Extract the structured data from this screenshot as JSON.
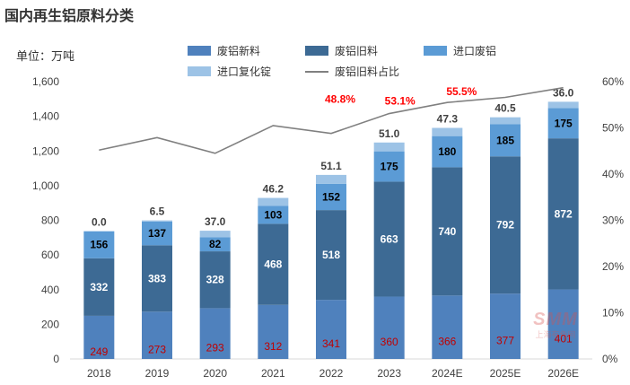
{
  "page": {
    "title": "国内再生铝原料分类",
    "unit": "单位：万吨"
  },
  "watermark": {
    "logo": "SMM",
    "text": "上海有色网"
  },
  "colors": {
    "new_scrap": "#4f81bd",
    "old_scrap": "#3d6a94",
    "import_scrap": "#5b9bd5",
    "import_remelt": "#9dc3e6",
    "ratio_line": "#808080",
    "new_label": "#c00000",
    "ratio_label": "#ff0000",
    "label_white": "#ffffff",
    "label_dark": "#000000",
    "axis_text": "#404040",
    "grid": "#d9d9d9"
  },
  "chart_data": {
    "type": "bar",
    "stacked": true,
    "title": "国内再生铝原料分类",
    "ylabel": "单位：万吨",
    "categories": [
      "2018",
      "2019",
      "2020",
      "2021",
      "2022",
      "2023",
      "2024E",
      "2025E",
      "2026E"
    ],
    "series": [
      {
        "name": "废铝新料",
        "key": "new_scrap",
        "values": [
          249,
          273,
          293,
          312,
          341,
          360,
          366,
          377,
          401
        ]
      },
      {
        "name": "废铝旧料",
        "key": "old_scrap",
        "values": [
          332,
          383,
          328,
          468,
          518,
          663,
          740,
          792,
          872
        ]
      },
      {
        "name": "进口废铝",
        "key": "import_scrap",
        "values": [
          156,
          137,
          82,
          103,
          152,
          175,
          180,
          185,
          175
        ]
      },
      {
        "name": "进口复化锭",
        "key": "import_remelt",
        "values": [
          0.0,
          6.5,
          37.0,
          46.2,
          51.1,
          51.0,
          47.3,
          40.5,
          36.0
        ]
      }
    ],
    "line": {
      "name": "废铝旧料占比",
      "axis": "right",
      "values": [
        45.2,
        47.9,
        44.5,
        50.5,
        48.8,
        53.1,
        55.5,
        56.6,
        58.7
      ],
      "labels": [
        "",
        "",
        "",
        "",
        "48.8%",
        "53.1%",
        "55.5%",
        "",
        ""
      ]
    },
    "ylim": [
      0,
      1600
    ],
    "yticks": [
      "0",
      "200",
      "400",
      "600",
      "800",
      "1,000",
      "1,200",
      "1,400",
      "1,600"
    ],
    "y2lim": [
      0,
      60
    ],
    "y2ticks": [
      "0%",
      "10%",
      "20%",
      "30%",
      "40%",
      "50%",
      "60%"
    ],
    "value_labels": {
      "new_scrap": [
        "249",
        "273",
        "293",
        "312",
        "341",
        "360",
        "366",
        "377",
        "401"
      ],
      "old_scrap": [
        "332",
        "383",
        "328",
        "468",
        "518",
        "663",
        "740",
        "792",
        "872"
      ],
      "import_scrap": [
        "156",
        "137",
        "82",
        "103",
        "152",
        "175",
        "180",
        "185",
        "175"
      ],
      "import_remelt": [
        "0.0",
        "6.5",
        "37.0",
        "46.2",
        "51.1",
        "51.0",
        "47.3",
        "40.5",
        "36.0"
      ]
    },
    "legend_placement": "top",
    "grid": false
  }
}
